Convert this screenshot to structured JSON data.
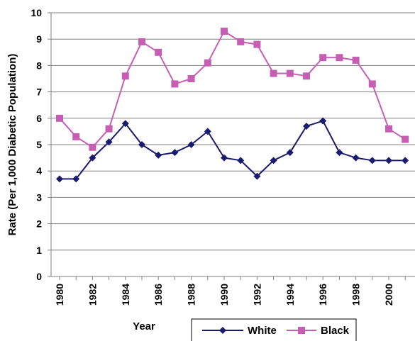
{
  "chart_data": {
    "type": "line",
    "title": "",
    "xlabel": "Year",
    "ylabel": "Rate (Per 1,000 Diabetic Population)",
    "ylim": [
      0,
      10
    ],
    "yticks": [
      "0",
      "1",
      "2",
      "3",
      "4",
      "5",
      "6",
      "7",
      "8",
      "9",
      "10"
    ],
    "x": [
      1980,
      1981,
      1982,
      1983,
      1984,
      1985,
      1986,
      1987,
      1988,
      1989,
      1990,
      1991,
      1992,
      1993,
      1994,
      1995,
      1996,
      1997,
      1998,
      1999,
      2000,
      2001
    ],
    "xticks": [
      "1980",
      "1982",
      "1984",
      "1986",
      "1988",
      "1990",
      "1992",
      "1994",
      "1996",
      "1998",
      "2000"
    ],
    "grid": "horizontal",
    "legend_position": "bottom",
    "series": [
      {
        "name": "White",
        "color": "#1a1a6e",
        "marker": "diamond",
        "values": [
          3.7,
          3.7,
          4.5,
          5.1,
          5.8,
          5.0,
          4.6,
          4.7,
          5.0,
          5.5,
          4.5,
          4.4,
          3.8,
          4.4,
          4.7,
          5.7,
          5.9,
          4.7,
          4.5,
          4.4,
          4.4,
          4.4
        ]
      },
      {
        "name": "Black",
        "color": "#c65fb4",
        "marker": "square",
        "values": [
          6.0,
          5.3,
          4.9,
          5.6,
          7.6,
          8.9,
          8.5,
          7.3,
          7.5,
          8.1,
          9.3,
          8.9,
          8.8,
          7.7,
          7.7,
          7.6,
          8.3,
          8.3,
          8.2,
          7.3,
          5.6,
          5.2
        ]
      }
    ]
  }
}
